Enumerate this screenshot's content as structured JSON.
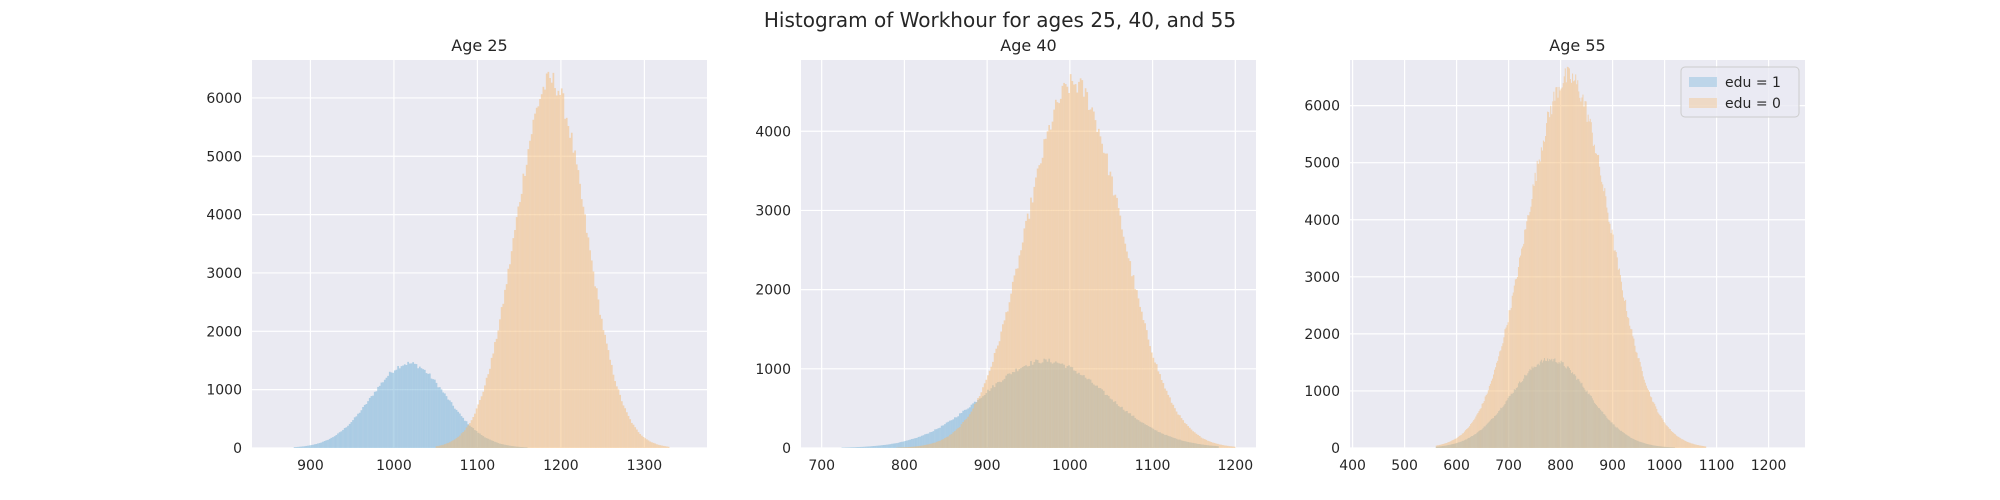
{
  "figure": {
    "title": "Histogram of Workhour for ages 25, 40, and 55"
  },
  "colors": {
    "panel_bg": "#EAEAF2",
    "grid": "#FFFFFF",
    "edu1": "#6BAED6",
    "edu0": "#F5B971",
    "text": "#262626"
  },
  "chart_data": [
    {
      "type": "histogram",
      "title": "Age 25",
      "xlim": [
        830,
        1375
      ],
      "ylim": [
        0,
        6650
      ],
      "xticks": [
        900,
        1000,
        1100,
        1200,
        1300
      ],
      "yticks": [
        0,
        1000,
        2000,
        3000,
        4000,
        5000,
        6000
      ],
      "bin_width": 2,
      "grid": true,
      "legend": null,
      "series": [
        {
          "name": "edu = 1",
          "distribution": "approx normal",
          "mean": 1018,
          "sd": 45,
          "peak_count": 1450,
          "range": [
            880,
            1160
          ]
        },
        {
          "name": "edu = 0",
          "distribution": "approx normal",
          "mean": 1188,
          "sd": 42,
          "peak_count": 6300,
          "range": [
            1050,
            1330
          ]
        }
      ]
    },
    {
      "type": "histogram",
      "title": "Age 40",
      "xlim": [
        675,
        1225
      ],
      "ylim": [
        0,
        4900
      ],
      "xticks": [
        700,
        800,
        900,
        1000,
        1100,
        1200
      ],
      "yticks": [
        0,
        1000,
        2000,
        3000,
        4000
      ],
      "bin_width": 2,
      "grid": true,
      "legend": null,
      "series": [
        {
          "name": "edu = 1",
          "distribution": "approx normal",
          "mean": 970,
          "sd": 75,
          "peak_count": 1100,
          "range": [
            720,
            1180
          ]
        },
        {
          "name": "edu = 0",
          "distribution": "approx normal",
          "mean": 1005,
          "sd": 58,
          "peak_count": 4600,
          "range": [
            780,
            1200
          ]
        }
      ]
    },
    {
      "type": "histogram",
      "title": "Age 55",
      "xlim": [
        395,
        1270
      ],
      "ylim": [
        0,
        6800
      ],
      "xticks": [
        400,
        500,
        600,
        700,
        800,
        900,
        1000,
        1100,
        1200
      ],
      "yticks": [
        0,
        1000,
        2000,
        3000,
        4000,
        5000,
        6000
      ],
      "bin_width": 2,
      "grid": true,
      "legend": "top-right",
      "series": [
        {
          "name": "edu = 1",
          "distribution": "approx normal",
          "mean": 780,
          "sd": 75,
          "peak_count": 1550,
          "range": [
            560,
            1020
          ]
        },
        {
          "name": "edu = 0",
          "distribution": "approx normal",
          "mean": 815,
          "sd": 80,
          "peak_count": 6500,
          "range": [
            560,
            1080
          ]
        }
      ]
    }
  ]
}
